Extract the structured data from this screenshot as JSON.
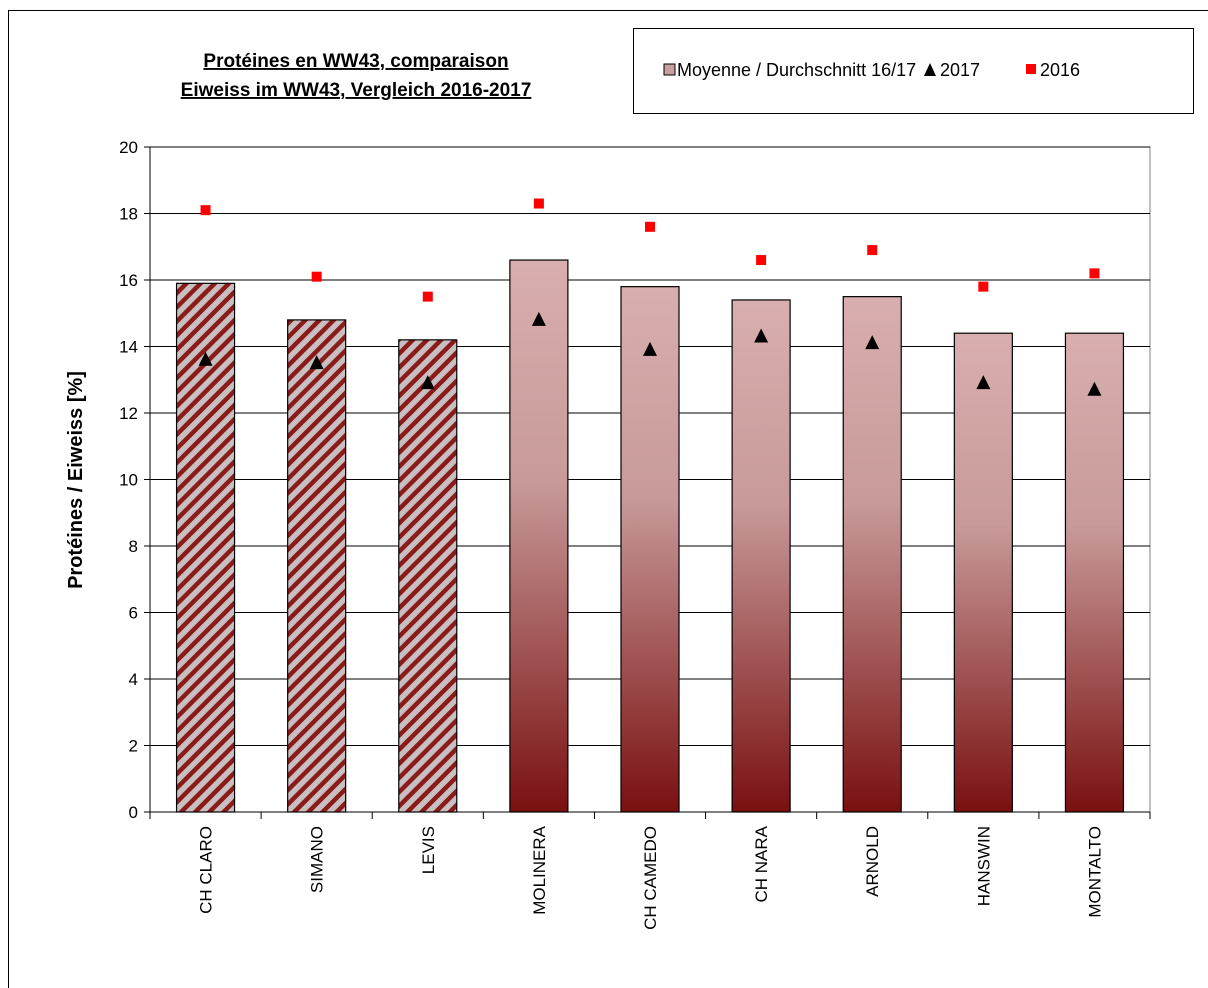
{
  "chart_data": {
    "type": "bar",
    "title_line1": "Protéines en WW43, comparaison",
    "title_line2": "Eiweiss im WW43, Vergleich 2016-2017",
    "ylabel": "Protéines / Eiweiss [%]",
    "xlabel": "",
    "ylim": [
      0,
      20
    ],
    "yticks": [
      "0",
      "2",
      "4",
      "6",
      "8",
      "10",
      "12",
      "14",
      "16",
      "18",
      "20"
    ],
    "grid": true,
    "legend_position": "top-right",
    "categories": [
      "CH CLARO",
      "SIMANO",
      "LEVIS",
      "MOLINERA",
      "CH CAMEDO",
      "CH NARA",
      "ARNOLD",
      "HANSWIN",
      "MONTALTO"
    ],
    "bar_style": [
      "hatched",
      "hatched",
      "hatched",
      "gradient",
      "gradient",
      "gradient",
      "gradient",
      "gradient",
      "gradient"
    ],
    "series": [
      {
        "name": "Moyenne / Durchschnitt 16/17",
        "kind": "bar",
        "values": [
          15.9,
          14.8,
          14.2,
          16.6,
          15.8,
          15.4,
          15.5,
          14.4,
          14.4
        ]
      },
      {
        "name": "2017",
        "kind": "triangle",
        "color": "#000000",
        "values": [
          13.6,
          13.5,
          12.9,
          14.8,
          13.9,
          14.3,
          14.1,
          12.9,
          12.7
        ]
      },
      {
        "name": "2016",
        "kind": "square",
        "color": "#ff0000",
        "values": [
          18.1,
          16.1,
          15.5,
          18.3,
          17.6,
          16.6,
          16.9,
          15.8,
          16.2
        ]
      }
    ],
    "colors": {
      "gradient_top": "#d9aeae",
      "gradient_bottom": "#7a1010",
      "hatch_light": "#c8c0c0",
      "hatch_dark": "#8b1a1a",
      "marker_2016": "#ff0000",
      "marker_2017": "#000000"
    }
  }
}
